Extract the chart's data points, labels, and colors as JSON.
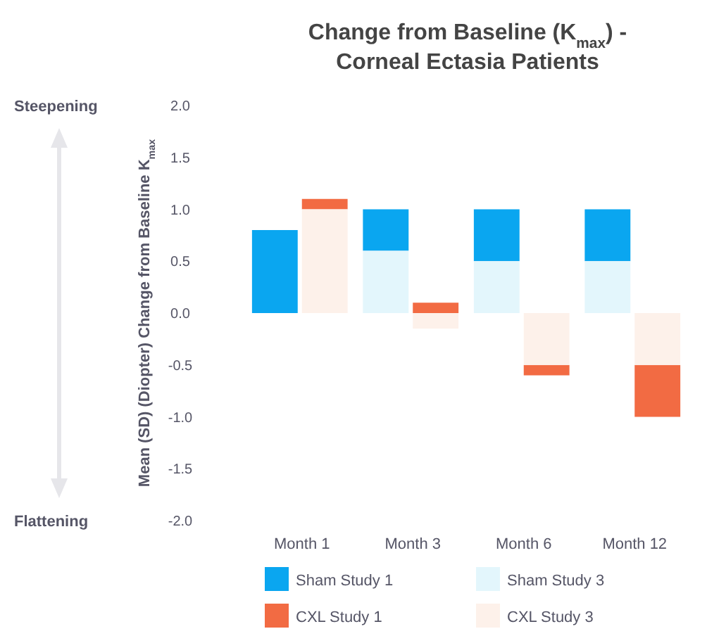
{
  "chart_data": {
    "type": "bar",
    "title": "Change from Baseline (K$_{max}$) - Corneal Ectasia Patients",
    "ylabel": "Mean (SD) (Diopter) Change from Baseline K$_{max}$",
    "categories": [
      "Month 1",
      "Month 3",
      "Month 6",
      "Month 12"
    ],
    "series": [
      {
        "name": "Sham Study 1",
        "color": "#0aa6f0",
        "values": [
          0.8,
          0.4,
          0.5,
          0.5
        ],
        "base": [
          0,
          0.6,
          0.5,
          0.5
        ]
      },
      {
        "name": "Sham Study 3",
        "color": "#e3f6fc",
        "values": [
          null,
          0.6,
          0.5,
          0.5
        ],
        "base": [
          null,
          0,
          0,
          0
        ]
      },
      {
        "name": "CXL Study 1",
        "color": "#f26b43",
        "values": [
          0.1,
          0.1,
          -0.1,
          -0.5
        ],
        "base": [
          1.0,
          0,
          -0.5,
          -0.5
        ]
      },
      {
        "name": "CXL Study 3",
        "color": "#fdf1ea",
        "values": [
          1.0,
          -0.15,
          -0.5,
          -0.5
        ],
        "base": [
          0,
          0,
          0,
          0
        ]
      }
    ],
    "ylim": [
      -2,
      2
    ],
    "yticks": [
      {
        "value": 2,
        "label": "2.0"
      },
      {
        "value": 1.5,
        "label": "1.5"
      },
      {
        "value": 1,
        "label": "1.0"
      },
      {
        "value": 0.5,
        "label": "0.5"
      },
      {
        "value": 0,
        "label": "0.0"
      },
      {
        "value": -0.5,
        "label": "-0.5"
      },
      {
        "value": -1,
        "label": "-1.0"
      },
      {
        "value": -1.5,
        "label": "-1.5"
      },
      {
        "value": -2,
        "label": "-2.0"
      }
    ],
    "annotations": [
      "Steepening",
      "Flattening"
    ],
    "legend": "bottom",
    "grid": false
  }
}
